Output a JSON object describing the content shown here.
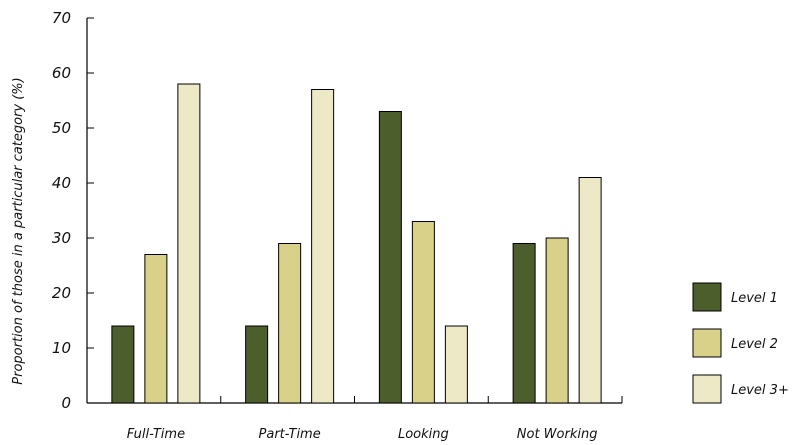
{
  "chart_data": {
    "type": "bar",
    "categories": [
      "Full-Time",
      "Part-Time",
      "Looking",
      "Not Working"
    ],
    "series": [
      {
        "name": "Level 1",
        "values": [
          14,
          14,
          53,
          29
        ],
        "color": "#4b5e2c"
      },
      {
        "name": "Level 2",
        "values": [
          27,
          29,
          33,
          30
        ],
        "color": "#d9d18a"
      },
      {
        "name": "Level 3+",
        "values": [
          58,
          57,
          14,
          41
        ],
        "color": "#ede9c6"
      }
    ],
    "ylabel": "Proportion of those in a particular category (%)",
    "xlabel": "",
    "ylim": [
      0,
      70
    ],
    "yticks": [
      0,
      10,
      20,
      30,
      40,
      50,
      60,
      70
    ],
    "grid": false,
    "legend_position": "right"
  }
}
